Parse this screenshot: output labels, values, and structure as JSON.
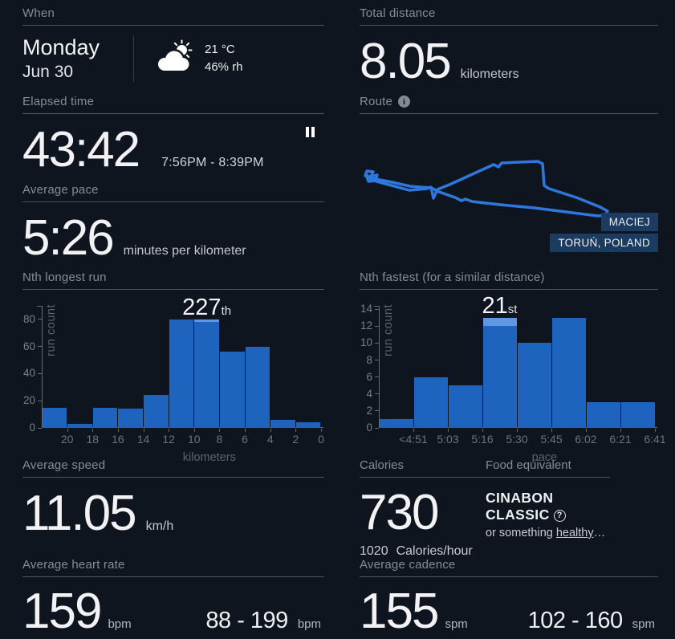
{
  "theme": {
    "background": "#0f151e",
    "bar_blue": "#1e63be",
    "highlight_blue": "#5f97e3",
    "route_blue": "#2e78dd",
    "badge_blue": "#1c3b60",
    "divider_gray": "#4d545c",
    "title_gray": "#868c94"
  },
  "when": {
    "title": "When",
    "day": "Monday",
    "date": "Jun 30",
    "temperature": "21 °C",
    "humidity": "46% rh",
    "icon": "sun-behind-cloud-icon"
  },
  "distance": {
    "title": "Total distance",
    "value": "8.05",
    "unit": "kilometers"
  },
  "elapsed": {
    "title": "Elapsed time",
    "value": "43:42",
    "time_range": "7:56PM - 8:39PM",
    "icon": "pause-icon"
  },
  "route": {
    "title": "Route",
    "info_icon": "i",
    "badges": [
      "MACIEJ",
      "TORUŃ, POLAND"
    ]
  },
  "pace": {
    "title": "Average pace",
    "value": "5:26",
    "unit": "minutes per kilometer"
  },
  "speed": {
    "title": "Average speed",
    "value": "11.05",
    "unit": "km/h"
  },
  "calories": {
    "title": "Calories",
    "value": "730",
    "rate_value": "1020",
    "rate_unit": "Calories/hour"
  },
  "food": {
    "title": "Food equivalent",
    "line1": "CINABON",
    "line2": "CLASSIC",
    "help_icon": "?",
    "alt_prefix": "or something ",
    "alt_link": "healthy",
    "alt_suffix": "…"
  },
  "heart_rate": {
    "title": "Average heart rate",
    "value": "159",
    "unit": "bpm",
    "range": "88 - 199",
    "range_unit": "bpm"
  },
  "cadence": {
    "title": "Average cadence",
    "value": "155",
    "unit": "spm",
    "range": "102 - 160",
    "range_unit": "spm"
  },
  "chart_data": [
    {
      "type": "bar",
      "title": "Nth longest run",
      "ylabel": "run count",
      "xlabel": "kilometers",
      "categories": [
        "20",
        "18",
        "16",
        "14",
        "12",
        "10",
        "8",
        "6",
        "4",
        "2",
        "0"
      ],
      "values": [
        15,
        3,
        15,
        14,
        24,
        80,
        80,
        56,
        60,
        6,
        4
      ],
      "yticks": [
        0,
        20,
        40,
        60,
        80
      ],
      "ylim": [
        0,
        90
      ],
      "legend": "none",
      "grid": false,
      "highlight": {
        "bar_index": 6,
        "rank": "227",
        "suffix": "th",
        "cap_value": 2
      }
    },
    {
      "type": "bar",
      "title": "Nth fastest (for a similar distance)",
      "ylabel": "run count",
      "xlabel": "pace",
      "categories": [
        "<4:51",
        "5:03",
        "5:16",
        "5:30",
        "5:45",
        "6:02",
        "6:21",
        "6:41"
      ],
      "values": [
        1,
        6,
        5,
        13,
        10,
        13,
        3,
        3
      ],
      "yticks": [
        0,
        2,
        4,
        6,
        8,
        10,
        12,
        14
      ],
      "ylim": [
        0,
        14.4
      ],
      "legend": "none",
      "grid": false,
      "highlight": {
        "bar_index": 3,
        "rank": "21",
        "suffix": "st",
        "cap_value": 1
      }
    }
  ]
}
